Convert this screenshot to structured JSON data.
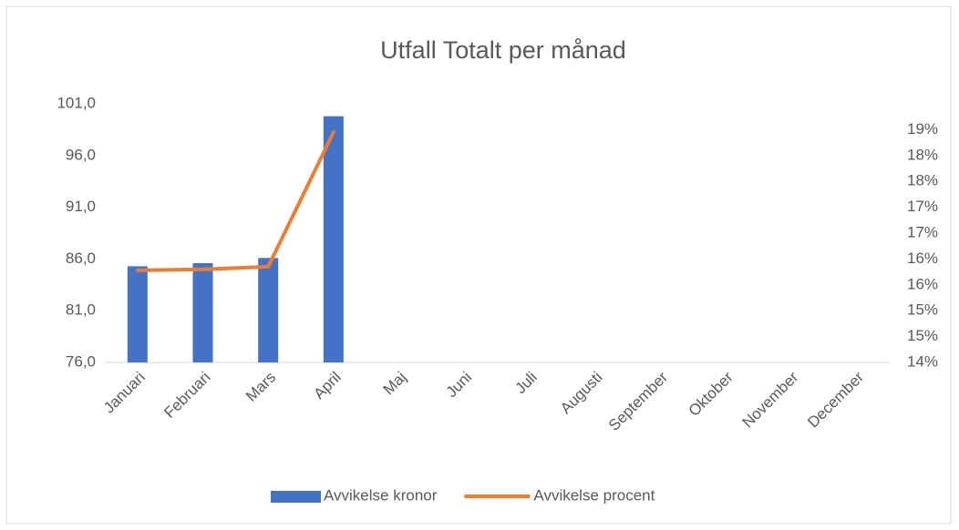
{
  "chart_data": {
    "type": "combo",
    "title": "Utfall Totalt per månad",
    "categories": [
      "Januari",
      "Februari",
      "Mars",
      "April",
      "Maj",
      "Juni",
      "Juli",
      "Augusti",
      "September",
      "Oktober",
      "November",
      "December"
    ],
    "series": [
      {
        "name": "Avvikelse kronor",
        "type": "bar",
        "color": "#4472c4",
        "values": [
          85.3,
          85.6,
          86.1,
          99.8,
          null,
          null,
          null,
          null,
          null,
          null,
          null,
          null
        ]
      },
      {
        "name": "Avvikelse procent",
        "type": "line",
        "axis": "y2",
        "color": "#ed7d31",
        "values": [
          15.78,
          15.8,
          15.85,
          18.45,
          null,
          null,
          null,
          null,
          null,
          null,
          null,
          null
        ]
      }
    ],
    "ylim": [
      76,
      101
    ],
    "yticks": [
      {
        "value": 76,
        "label": "76,0"
      },
      {
        "value": 81,
        "label": "81,0"
      },
      {
        "value": 86,
        "label": "86,0"
      },
      {
        "value": 91,
        "label": "91,0"
      },
      {
        "value": 96,
        "label": "96,0"
      },
      {
        "value": 101,
        "label": "101,0"
      }
    ],
    "y2lim": [
      14,
      19
    ],
    "y2ticks": [
      {
        "value": 14,
        "label": "14%"
      },
      {
        "value": 14.5,
        "label": "15%"
      },
      {
        "value": 15,
        "label": "15%"
      },
      {
        "value": 15.5,
        "label": "16%"
      },
      {
        "value": 16,
        "label": "16%"
      },
      {
        "value": 16.5,
        "label": "17%"
      },
      {
        "value": 17,
        "label": "17%"
      },
      {
        "value": 17.5,
        "label": "18%"
      },
      {
        "value": 18,
        "label": "18%"
      },
      {
        "value": 18.5,
        "label": "19%"
      }
    ],
    "grid": false,
    "legend": "bottom"
  }
}
